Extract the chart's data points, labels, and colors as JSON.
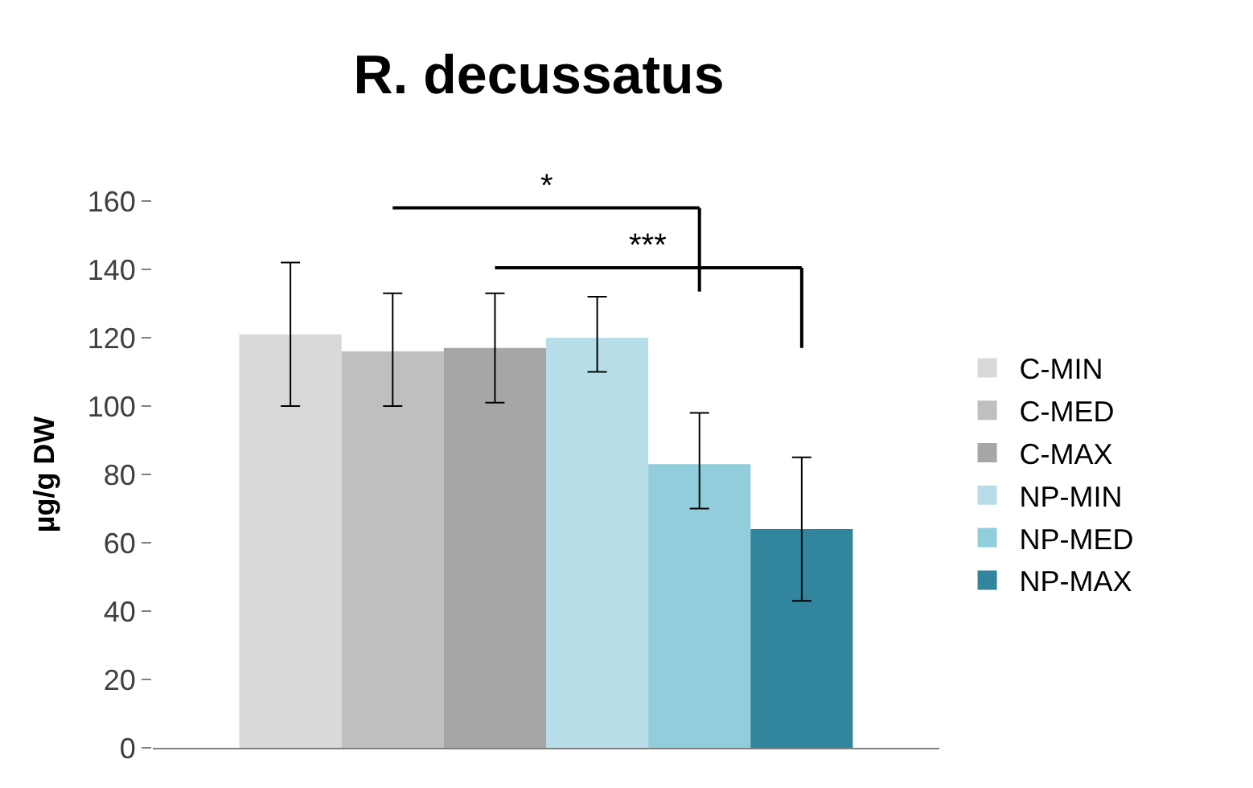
{
  "chart_data": {
    "type": "bar",
    "title": "R. decussatus",
    "ylabel": "µg/g DW",
    "categories": [
      null
    ],
    "series": [
      {
        "name": "C-MIN",
        "color": "#d9d9d9",
        "values": [
          121
        ],
        "errors": [
          [
            100,
            142
          ]
        ]
      },
      {
        "name": "C-MED",
        "color": "#bfbfbf",
        "values": [
          116
        ],
        "errors": [
          [
            100,
            133
          ]
        ]
      },
      {
        "name": "C-MAX",
        "color": "#a6a6a6",
        "values": [
          117
        ],
        "errors": [
          [
            101,
            133
          ]
        ]
      },
      {
        "name": "NP-MIN",
        "color": "#b7dee8",
        "values": [
          120
        ],
        "errors": [
          [
            110,
            132
          ]
        ]
      },
      {
        "name": "NP-MED",
        "color": "#92cddc",
        "values": [
          83
        ],
        "errors": [
          [
            70,
            98
          ]
        ]
      },
      {
        "name": "NP-MAX",
        "color": "#31859c",
        "values": [
          64
        ],
        "errors": [
          [
            43,
            85
          ]
        ]
      }
    ],
    "annotations": [
      "*",
      "***"
    ],
    "ylim": [
      0,
      160
    ],
    "yticks": [
      0,
      20,
      40,
      60,
      80,
      100,
      120,
      140,
      160
    ],
    "legend": "right"
  }
}
